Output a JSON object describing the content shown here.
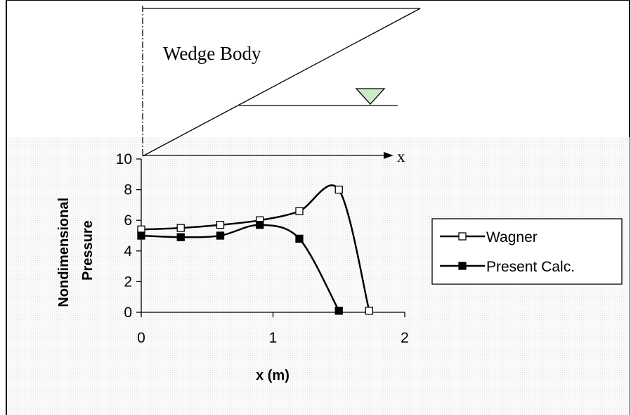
{
  "diagram": {
    "label": "Wedge Body",
    "axis_label": "x",
    "colors": {
      "water_marker": "#c8ecc8"
    }
  },
  "chart_data": {
    "type": "line",
    "title": "",
    "xlabel": "x (m)",
    "ylabel_lines": [
      "Nondimensional",
      "Pressure"
    ],
    "xlim": [
      0,
      2
    ],
    "ylim": [
      0,
      10
    ],
    "x_ticks": [
      0,
      1,
      2
    ],
    "y_ticks": [
      0,
      2,
      4,
      6,
      8,
      10
    ],
    "grid": false,
    "legend_position": "right",
    "series": [
      {
        "name": "Wagner",
        "marker": "open-square",
        "color": "#000000",
        "x": [
          0.0,
          0.3,
          0.6,
          0.9,
          1.2,
          1.5,
          1.73
        ],
        "y": [
          5.4,
          5.5,
          5.7,
          6.0,
          6.6,
          8.0,
          0.1
        ]
      },
      {
        "name": "Present Calc.",
        "marker": "filled-square",
        "color": "#000000",
        "x": [
          0.0,
          0.3,
          0.6,
          0.9,
          1.2,
          1.5
        ],
        "y": [
          5.0,
          4.9,
          5.0,
          5.7,
          4.8,
          0.1
        ]
      }
    ]
  }
}
